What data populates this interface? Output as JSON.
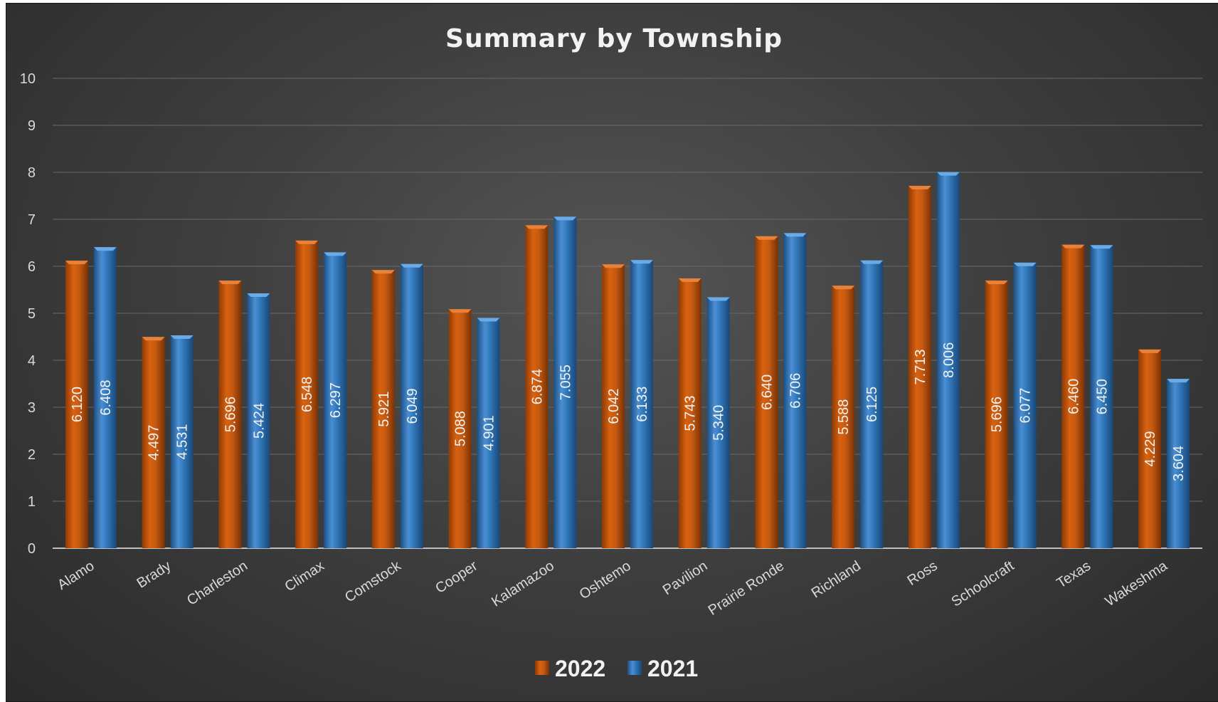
{
  "chart_data": {
    "type": "bar",
    "title": "Summary by Township",
    "xlabel": "",
    "ylabel": "",
    "ylim": [
      0,
      10
    ],
    "yticks": [
      0,
      1,
      2,
      3,
      4,
      5,
      6,
      7,
      8,
      9,
      10
    ],
    "grid": true,
    "legend_position": "bottom",
    "categories": [
      "Alamo",
      "Brady",
      "Charleston",
      "Climax",
      "Comstock",
      "Cooper",
      "Kalamazoo",
      "Oshtemo",
      "Pavilion",
      "Prairie Ronde",
      "Richland",
      "Ross",
      "Schoolcraft",
      "Texas",
      "Wakeshma"
    ],
    "series": [
      {
        "name": "2022",
        "color": "#c55a11",
        "values": [
          6.12,
          4.497,
          5.696,
          6.548,
          5.921,
          5.088,
          6.874,
          6.042,
          5.743,
          6.64,
          5.588,
          7.713,
          5.696,
          6.46,
          4.229
        ],
        "labels": [
          "6.120",
          "4.497",
          "5.696",
          "6.548",
          "5.921",
          "5.088",
          "6.874",
          "6.042",
          "5.743",
          "6.640",
          "5.588",
          "7.713",
          "5.696",
          "6.460",
          "4.229"
        ]
      },
      {
        "name": "2021",
        "color": "#2e75b6",
        "values": [
          6.408,
          4.531,
          5.424,
          6.297,
          6.049,
          4.901,
          7.055,
          6.133,
          5.34,
          6.706,
          6.125,
          8.006,
          6.077,
          6.45,
          3.604
        ],
        "labels": [
          "6.408",
          "4.531",
          "5.424",
          "6.297",
          "6.049",
          "4.901",
          "7.055",
          "6.133",
          "5.340",
          "6.706",
          "6.125",
          "8.006",
          "6.077",
          "6.450",
          "3.604"
        ]
      }
    ]
  }
}
